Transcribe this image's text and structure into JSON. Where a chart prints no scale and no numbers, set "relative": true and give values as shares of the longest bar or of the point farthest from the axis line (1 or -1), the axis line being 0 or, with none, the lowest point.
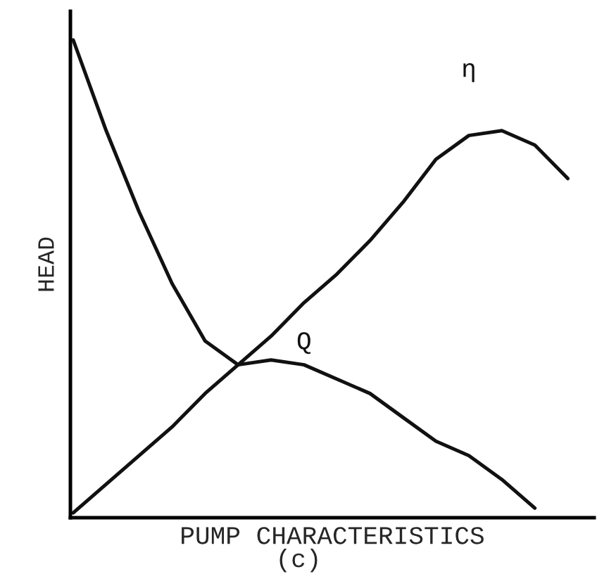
{
  "chart_data": {
    "type": "line",
    "relative": true,
    "xlabel": "PUMP CHARACTERISTICS",
    "ylabel": "HEAD",
    "annotations": [
      "(c)"
    ],
    "legend": false,
    "marker": "none",
    "line_style": "solid",
    "categories": [
      null,
      null,
      null,
      null,
      null,
      null,
      null,
      null,
      null,
      null,
      null,
      null,
      null,
      null,
      null,
      null
    ],
    "series": [
      {
        "name": "η",
        "color": "#111111",
        "values": [
          0.01,
          0.07,
          0.13,
          0.19,
          0.26,
          0.32,
          0.38,
          0.45,
          0.51,
          0.58,
          0.66,
          0.75,
          0.8,
          0.81,
          0.78,
          0.71
        ]
      },
      {
        "name": "Q",
        "color": "#111111",
        "values": [
          1,
          0.81,
          0.64,
          0.49,
          0.37,
          0.32,
          0.33,
          0.32,
          0.29,
          0.26,
          0.21,
          0.16,
          0.13,
          0.08,
          0.02,
          null
        ]
      }
    ]
  }
}
